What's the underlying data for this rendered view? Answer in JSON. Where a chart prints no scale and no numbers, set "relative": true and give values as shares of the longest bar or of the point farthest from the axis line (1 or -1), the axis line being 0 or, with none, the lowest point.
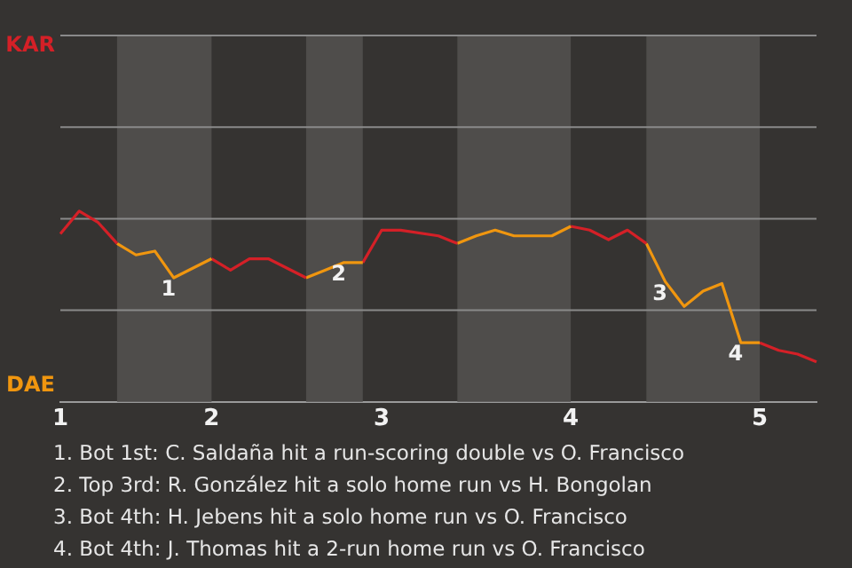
{
  "chart_data": {
    "type": "line",
    "relative": true,
    "categories": [
      "1",
      null,
      null,
      null,
      null,
      null,
      null,
      null,
      "2",
      null,
      null,
      null,
      null,
      null,
      null,
      null,
      null,
      "3",
      null,
      null,
      null,
      null,
      null,
      null,
      null,
      null,
      null,
      "4",
      null,
      null,
      null,
      null,
      null,
      null,
      null,
      null,
      null,
      "5",
      null,
      null,
      null
    ],
    "tick_labels": "x",
    "ref_lines": [
      {
        "axis": "y",
        "value": 0.48,
        "color": "#8a8a8a"
      },
      {
        "axis": "y",
        "value": 0.96,
        "color": "#8a8a8a"
      },
      {
        "axis": "y",
        "value": 1.44,
        "color": "#8a8a8a"
      },
      {
        "axis": "y",
        "value": 1.92,
        "color": "#8a8a8a"
      }
    ],
    "legend": false,
    "marker": "none",
    "series": [
      {
        "color": "#d42027",
        "values": [
          0.88,
          1,
          0.94,
          0.83,
          null,
          null,
          null,
          null,
          null,
          null,
          null,
          null,
          null,
          null,
          null,
          null,
          null,
          null,
          null,
          null,
          null,
          null,
          null,
          null,
          null,
          null,
          null,
          null,
          null,
          null,
          null,
          null,
          null,
          null,
          null,
          null,
          null,
          null,
          null,
          null,
          null
        ]
      },
      {
        "color": "#f0960f",
        "values": [
          null,
          null,
          null,
          0.83,
          0.77,
          0.79,
          0.65,
          null,
          0.75,
          null,
          null,
          null,
          null,
          null,
          null,
          null,
          null,
          null,
          null,
          null,
          null,
          null,
          null,
          null,
          null,
          null,
          null,
          null,
          null,
          null,
          null,
          null,
          null,
          null,
          null,
          null,
          null,
          null,
          null,
          null,
          null
        ]
      },
      {
        "color": "#d42027",
        "values": [
          null,
          null,
          null,
          null,
          null,
          null,
          null,
          null,
          0.75,
          0.69,
          0.75,
          0.75,
          null,
          0.65,
          null,
          null,
          null,
          null,
          null,
          null,
          null,
          null,
          null,
          null,
          null,
          null,
          null,
          null,
          null,
          null,
          null,
          null,
          null,
          null,
          null,
          null,
          null,
          null,
          null,
          null,
          null
        ]
      },
      {
        "color": "#f0960f",
        "values": [
          null,
          null,
          null,
          null,
          null,
          null,
          null,
          null,
          null,
          null,
          null,
          null,
          null,
          0.65,
          0.69,
          0.73,
          0.73,
          null,
          null,
          null,
          null,
          null,
          null,
          null,
          null,
          null,
          null,
          null,
          null,
          null,
          null,
          null,
          null,
          null,
          null,
          null,
          null,
          null,
          null,
          null,
          null
        ]
      },
      {
        "color": "#d42027",
        "values": [
          null,
          null,
          null,
          null,
          null,
          null,
          null,
          null,
          null,
          null,
          null,
          null,
          null,
          null,
          null,
          null,
          0.73,
          0.9,
          0.9,
          null,
          0.87,
          0.83,
          null,
          null,
          null,
          null,
          null,
          null,
          null,
          null,
          null,
          null,
          null,
          null,
          null,
          null,
          null,
          null,
          null,
          null,
          null
        ]
      },
      {
        "color": "#f0960f",
        "values": [
          null,
          null,
          null,
          null,
          null,
          null,
          null,
          null,
          null,
          null,
          null,
          null,
          null,
          null,
          null,
          null,
          null,
          null,
          null,
          null,
          null,
          0.83,
          0.87,
          0.9,
          0.87,
          null,
          0.87,
          0.92,
          null,
          null,
          null,
          null,
          null,
          null,
          null,
          null,
          null,
          null,
          null,
          null,
          null
        ]
      },
      {
        "color": "#d42027",
        "values": [
          null,
          null,
          null,
          null,
          null,
          null,
          null,
          null,
          null,
          null,
          null,
          null,
          null,
          null,
          null,
          null,
          null,
          null,
          null,
          null,
          null,
          null,
          null,
          null,
          null,
          null,
          null,
          0.92,
          0.9,
          0.85,
          0.9,
          0.83,
          null,
          null,
          null,
          null,
          null,
          null,
          null,
          null,
          null
        ]
      },
      {
        "color": "#f0960f",
        "values": [
          null,
          null,
          null,
          null,
          null,
          null,
          null,
          null,
          null,
          null,
          null,
          null,
          null,
          null,
          null,
          null,
          null,
          null,
          null,
          null,
          null,
          null,
          null,
          null,
          null,
          null,
          null,
          null,
          null,
          null,
          null,
          0.83,
          0.63,
          0.5,
          0.58,
          0.62,
          0.31,
          0.31,
          null,
          null,
          null
        ]
      },
      {
        "color": "#d42027",
        "values": [
          null,
          null,
          null,
          null,
          null,
          null,
          null,
          null,
          null,
          null,
          null,
          null,
          null,
          null,
          null,
          null,
          null,
          null,
          null,
          null,
          null,
          null,
          null,
          null,
          null,
          null,
          null,
          null,
          null,
          null,
          null,
          null,
          null,
          null,
          null,
          null,
          null,
          0.31,
          0.27,
          0.25,
          0.21
        ]
      }
    ],
    "annotations": [
      "KAR",
      "DAE",
      {
        "text": "1",
        "y": 0.65
      },
      {
        "text": "2",
        "y": 0.73
      },
      {
        "text": "3",
        "y": 0.63
      },
      {
        "text": "4",
        "y": 0.31
      },
      "1. Bot 1st: C. Saldaña hit a run-scoring double vs O. Francisco",
      "2. Top 3rd: R. González hit a solo home run vs H. Bongolan",
      "3. Bot 4th: H. Jebens hit a solo home run vs O. Francisco",
      "4. Bot 4th: J. Thomas hit a 2-run home run vs O. Francisco"
    ]
  }
}
